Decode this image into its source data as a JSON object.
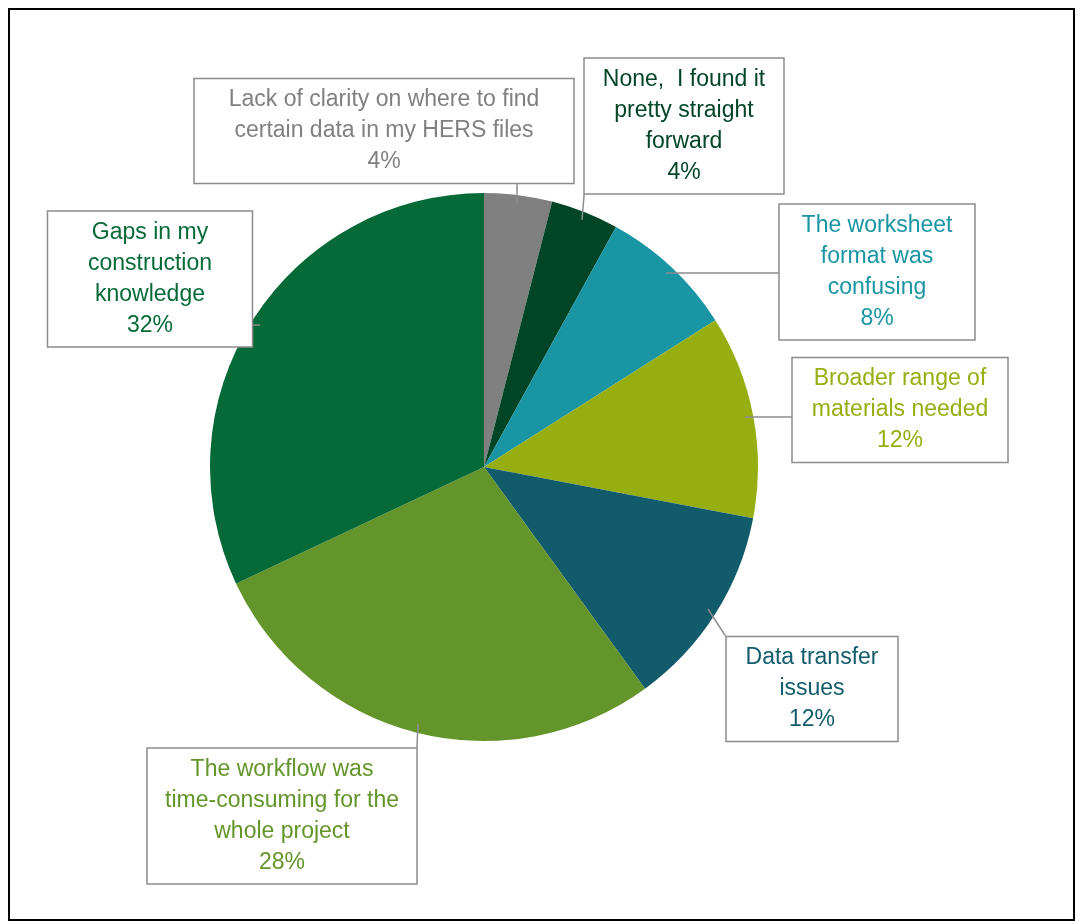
{
  "chart_data": {
    "type": "pie",
    "categories": [
      "Lack of clarity on where to find certain data in my HERS files",
      "None,  I found it pretty straight forward",
      "The worksheet format was confusing",
      "Broader range of materials needed",
      "Data transfer issues",
      "The workflow was time-consuming for the whole project",
      "Gaps in my construction knowledge"
    ],
    "values": [
      4,
      4,
      8,
      12,
      12,
      28,
      32
    ],
    "value_labels": [
      "4%",
      "4%",
      "8%",
      "12%",
      "12%",
      "28%",
      "32%"
    ],
    "colors": [
      "#808080",
      "#004526",
      "#1995a3",
      "#97ae10",
      "#125b6b",
      "#64952a",
      "#066a38"
    ],
    "legend": false
  }
}
